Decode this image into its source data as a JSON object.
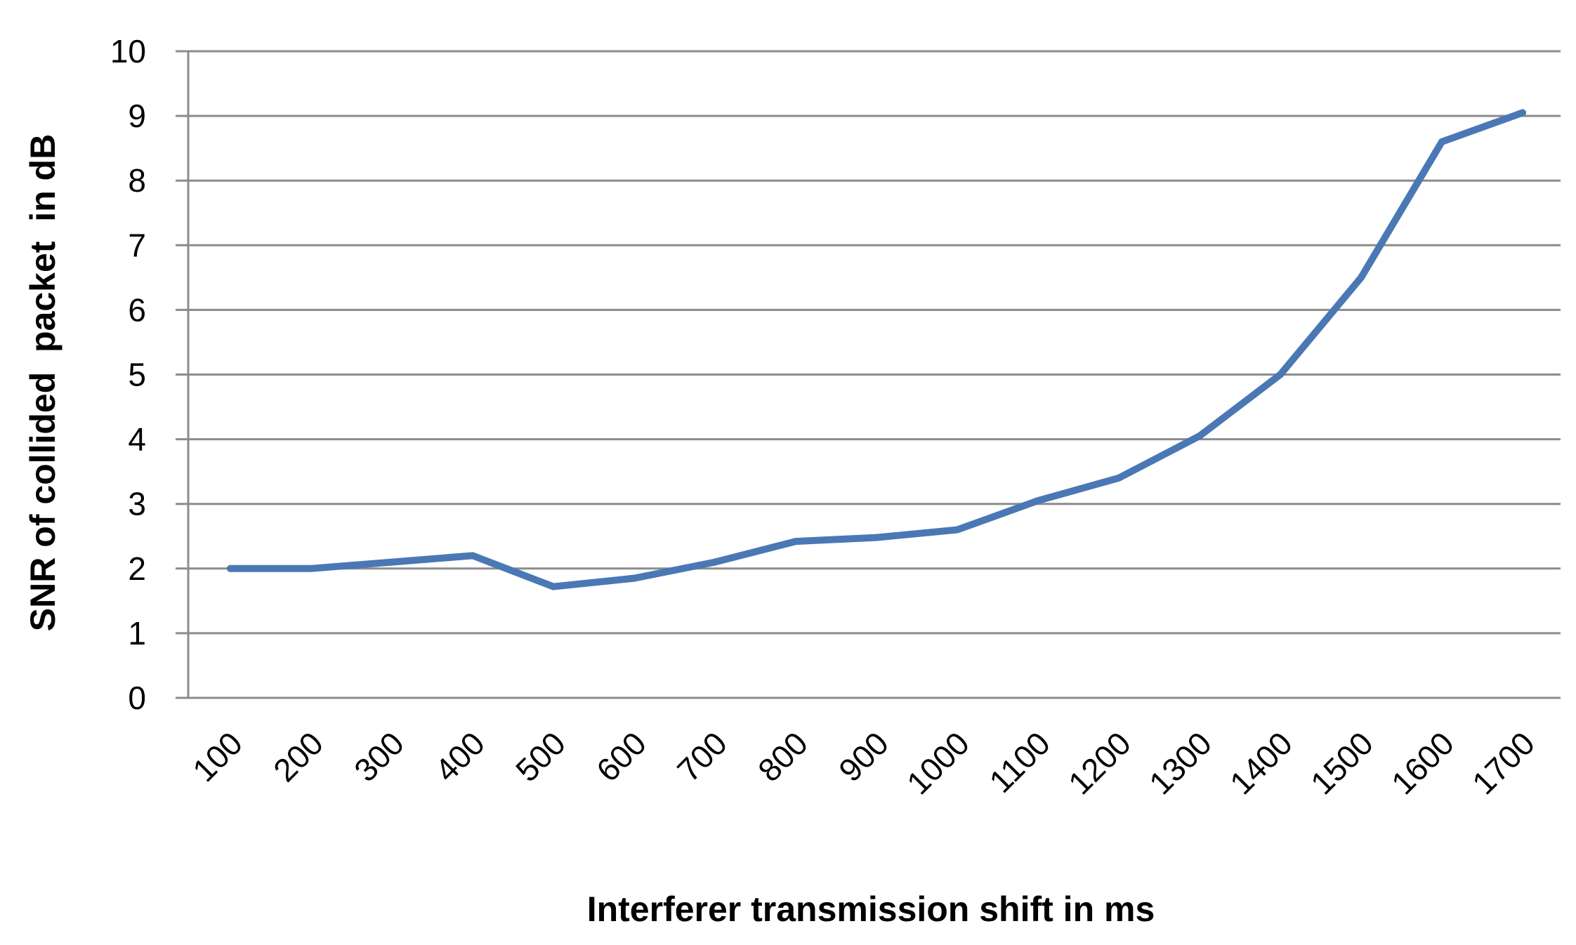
{
  "chart_data": {
    "type": "line",
    "title": "",
    "xlabel": "Interferer transmission shift in ms",
    "ylabel": "SNR of collided  packet  in dB",
    "categories": [
      "100",
      "200",
      "300",
      "400",
      "500",
      "600",
      "700",
      "800",
      "900",
      "1000",
      "1100",
      "1200",
      "1300",
      "1400",
      "1500",
      "1600",
      "1700"
    ],
    "series": [
      {
        "values": [
          2.0,
          2.0,
          2.1,
          2.2,
          1.72,
          1.85,
          2.1,
          2.42,
          2.48,
          2.6,
          3.05,
          3.4,
          4.05,
          5.0,
          6.5,
          8.6,
          9.05
        ],
        "color": "#4a78b4"
      }
    ],
    "ylim": [
      0,
      10
    ],
    "yticks": [
      "0",
      "1",
      "2",
      "3",
      "4",
      "5",
      "6",
      "7",
      "8",
      "9",
      "10"
    ],
    "grid": true,
    "legend": "none"
  }
}
